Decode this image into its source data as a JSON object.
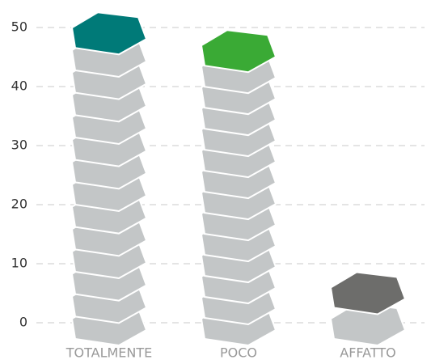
{
  "chart_data": {
    "type": "pictorial-bar",
    "categories": [
      "TOTALMENTE",
      "POCO",
      "AFFATTO"
    ],
    "values": [
      49,
      46,
      5
    ],
    "colors": [
      "#007a78",
      "#3aaa35",
      "#6d6d6b"
    ],
    "ylim": [
      0,
      50
    ],
    "yticks": [
      0,
      10,
      20,
      30,
      40,
      50
    ],
    "grid": true
  }
}
